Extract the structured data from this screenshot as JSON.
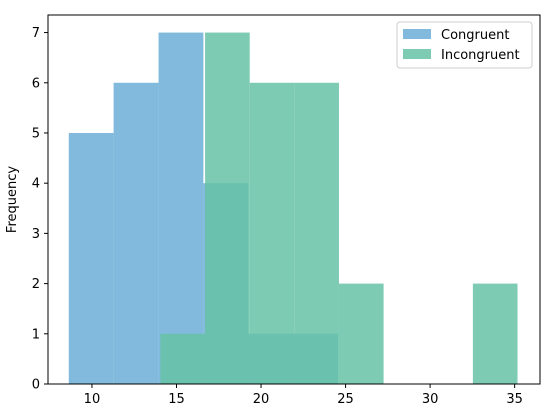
{
  "chart_data": {
    "type": "histogram",
    "ylabel": "Frequency",
    "xlabel": "",
    "xlim": [
      7.4,
      36.5
    ],
    "ylim": [
      0,
      7.35
    ],
    "xticks": [
      10,
      15,
      20,
      25,
      30,
      35
    ],
    "yticks": [
      0,
      1,
      2,
      3,
      4,
      5,
      6,
      7
    ],
    "legend_position": "top-right",
    "series": [
      {
        "name": "Congruent",
        "color": "#6baed6",
        "bin_edges": [
          8.63,
          11.28,
          13.94,
          16.59,
          19.25,
          21.9,
          24.56
        ],
        "counts": [
          5,
          6,
          7,
          4,
          1,
          1
        ]
      },
      {
        "name": "Incongruent",
        "color": "#66c2a5",
        "bin_edges": [
          14.05,
          16.69,
          19.33,
          21.97,
          24.61,
          27.25,
          29.89,
          32.53,
          35.17
        ],
        "counts": [
          1,
          7,
          6,
          6,
          2,
          0,
          0,
          2
        ]
      }
    ]
  }
}
